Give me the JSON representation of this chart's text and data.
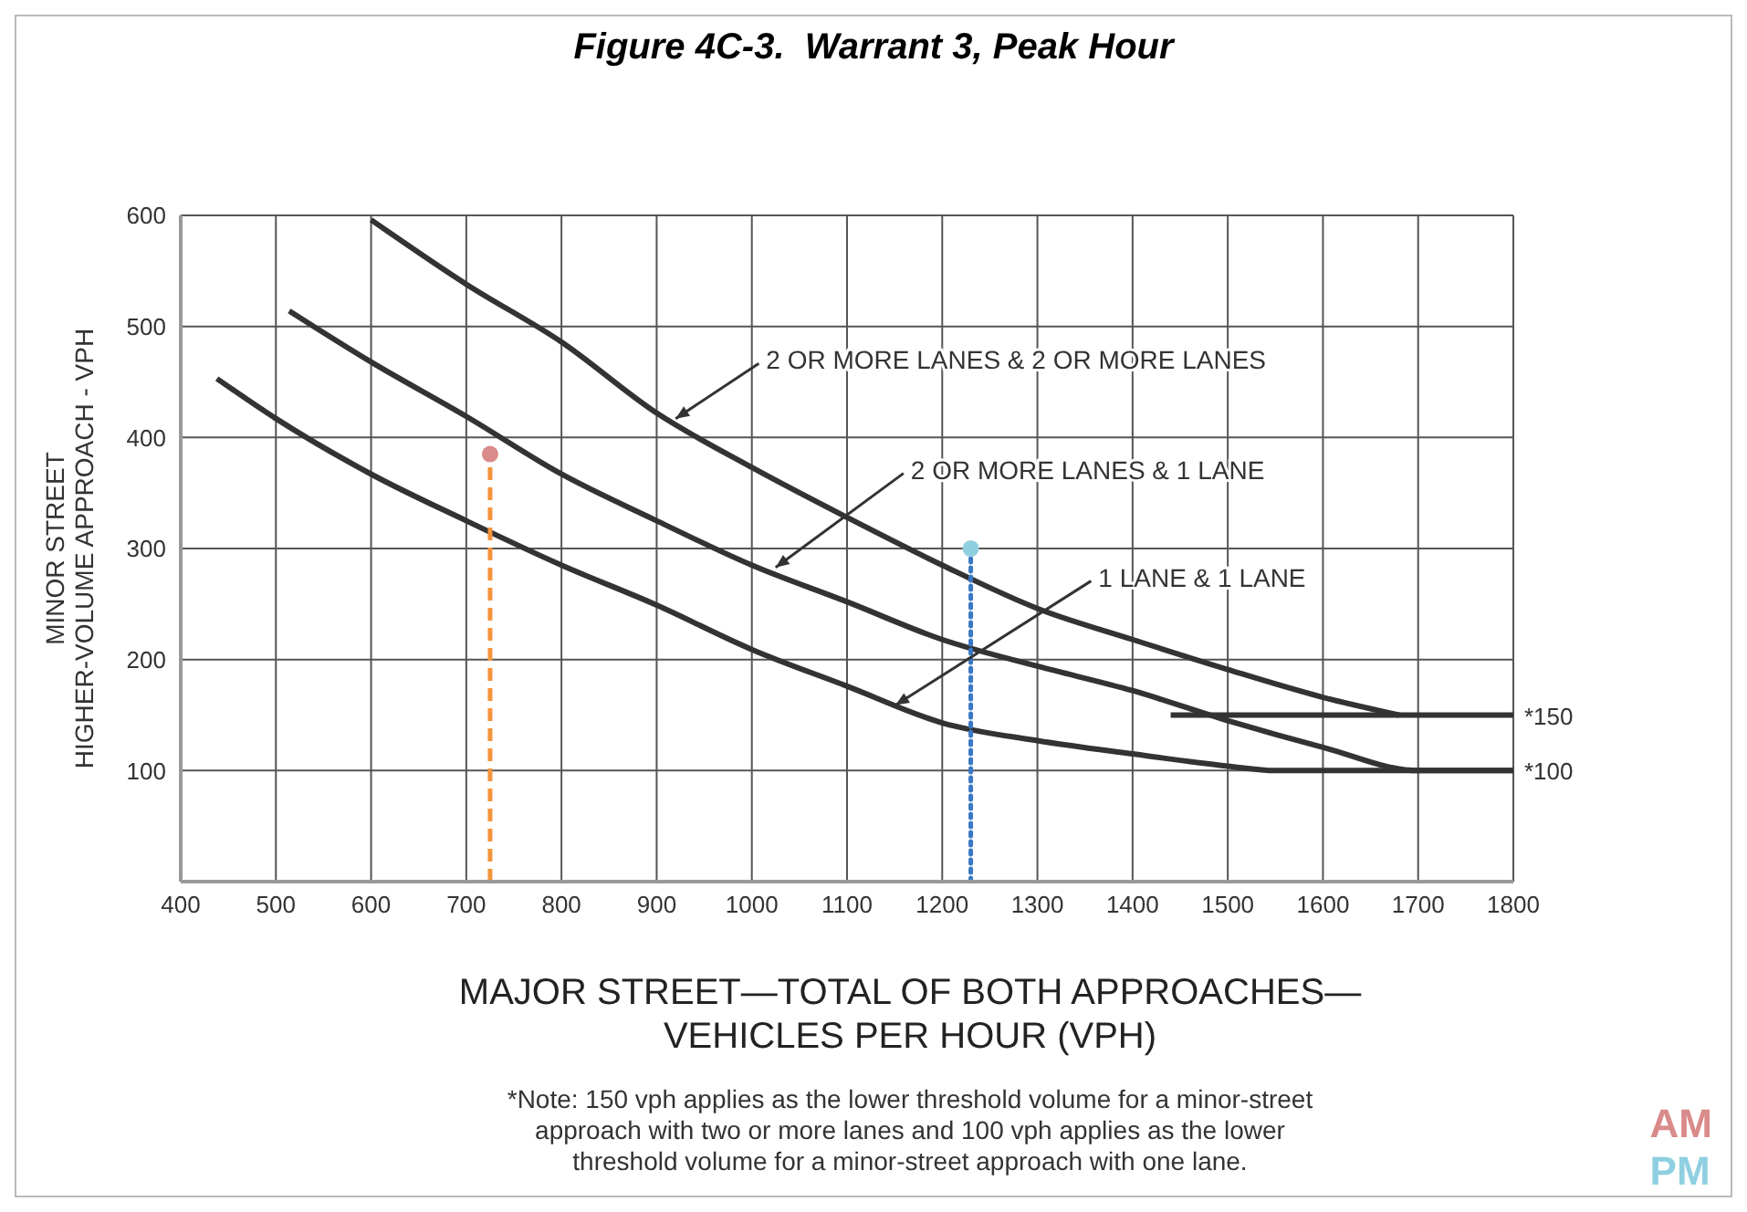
{
  "chart_data": {
    "type": "line",
    "title": "Figure 4C-3.  Warrant 3, Peak Hour",
    "xlabel": "MAJOR STREET—TOTAL OF BOTH APPROACHES—\nVEHICLES PER HOUR (VPH)",
    "ylabel": "MINOR STREET\nHIGHER-VOLUME APPROACH - VPH",
    "xlim": [
      400,
      1800
    ],
    "xticks": [
      400,
      500,
      600,
      700,
      800,
      900,
      1000,
      1100,
      1200,
      1300,
      1400,
      1500,
      1600,
      1700,
      1800
    ],
    "ylim": [
      0,
      600
    ],
    "yticks": [
      100,
      200,
      300,
      400,
      500,
      600
    ],
    "grid": true,
    "legend": "bottom right",
    "marker": "none",
    "line_style": "solid",
    "series": [
      {
        "color": "#333333",
        "x": [
          600,
          700,
          800,
          900,
          1000,
          1100,
          1200,
          1300,
          1400,
          1500,
          1600,
          1680
        ],
        "values": [
          596,
          538,
          486,
          422,
          373,
          328,
          285,
          246,
          218,
          191,
          166,
          150
        ]
      },
      {
        "color": "#333333",
        "x": [
          514,
          600,
          700,
          800,
          900,
          1000,
          1100,
          1200,
          1300,
          1400,
          1500,
          1600,
          1700,
          1800
        ],
        "values": [
          514,
          468,
          419,
          367,
          325,
          285,
          252,
          218,
          194,
          172,
          145,
          121,
          100,
          100
        ]
      },
      {
        "color": "#333333",
        "x": [
          438,
          500,
          600,
          700,
          800,
          900,
          1000,
          1100,
          1200,
          1300,
          1400,
          1500,
          1550,
          1800
        ],
        "values": [
          453,
          417,
          367,
          325,
          285,
          249,
          209,
          176,
          143,
          127,
          115,
          104,
          100,
          100
        ]
      },
      {
        "color": "#333333",
        "x": [
          1440,
          1800
        ],
        "values": [
          150,
          150
        ]
      },
      {
        "color": "#f4943c",
        "line_style": "dashed",
        "x": [
          725,
          725
        ],
        "values": [
          0,
          385
        ]
      },
      {
        "color": "#3a78c4",
        "line_style": "dotted",
        "x": [
          1230,
          1230
        ],
        "values": [
          0,
          300
        ]
      },
      {
        "name": "AM",
        "type": "scatter",
        "color": "#d98a8a",
        "marker": "circle",
        "x": [
          725
        ],
        "values": [
          385
        ]
      },
      {
        "name": "PM",
        "type": "scatter",
        "color": "#8ecfe0",
        "marker": "circle",
        "x": [
          1230
        ],
        "values": [
          300
        ]
      }
    ],
    "annotations": [
      {
        "text": "2 OR MORE LANES & 2 OR MORE LANES",
        "x": 920,
        "y": 417
      },
      {
        "text": "2 OR MORE LANES & 1 LANE",
        "x": 1025,
        "y": 283
      },
      {
        "text": "1 LANE & 1 LANE",
        "x": 1151,
        "y": 159
      },
      {
        "text": "*150",
        "x": 1800,
        "y": 150
      },
      {
        "text": "*100",
        "x": 1800,
        "y": 100
      },
      "*Note: 150 vph applies as the lower threshold volume for a minor-street\napproach with two or more lanes and 100 vph applies as the lower\nthreshold volume for a minor-street approach with one lane."
    ]
  }
}
